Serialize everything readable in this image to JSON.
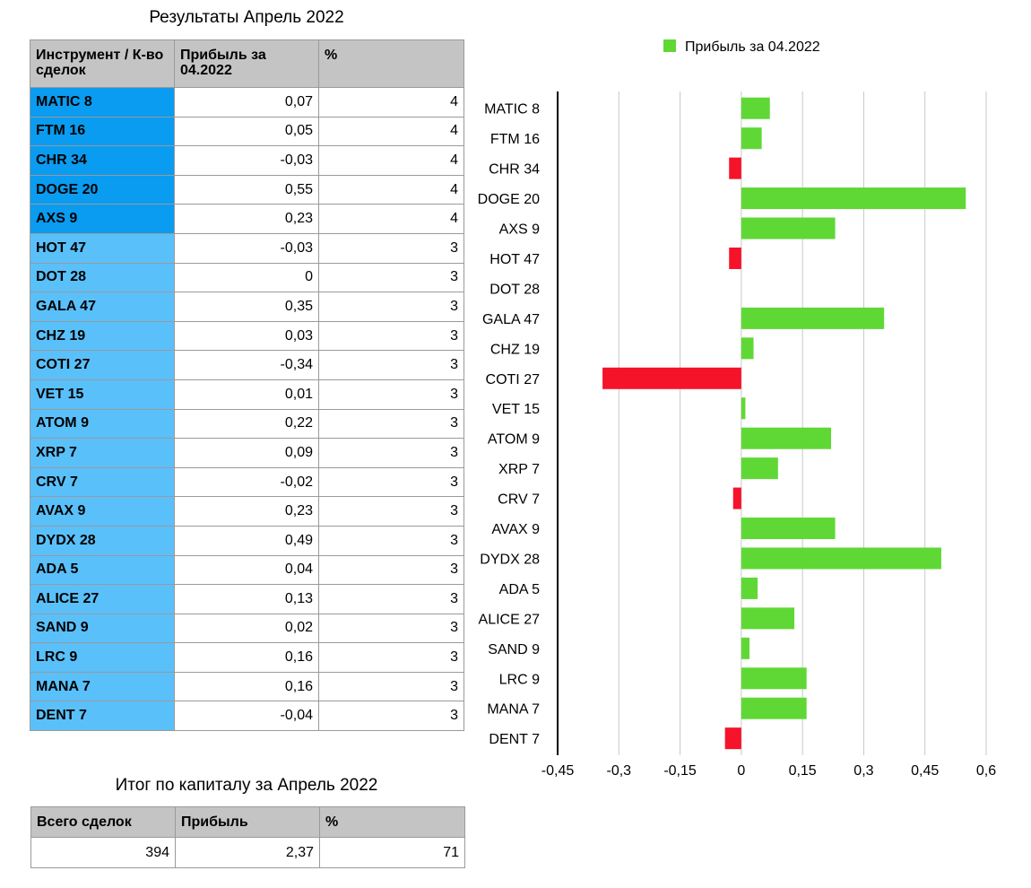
{
  "table_title": "Результаты Апрель 2022",
  "table_headers": [
    "Инструмент / К-во сделок",
    "Прибыль за 04.2022",
    "%"
  ],
  "table_rows": [
    {
      "name": "MATIC 8",
      "profit": "0,07",
      "percent": "4",
      "shade": "dark"
    },
    {
      "name": "FTM 16",
      "profit": "0,05",
      "percent": "4",
      "shade": "dark"
    },
    {
      "name": "CHR 34",
      "profit": "-0,03",
      "percent": "4",
      "shade": "dark"
    },
    {
      "name": "DOGE 20",
      "profit": "0,55",
      "percent": "4",
      "shade": "dark"
    },
    {
      "name": "AXS 9",
      "profit": "0,23",
      "percent": "4",
      "shade": "dark"
    },
    {
      "name": "HOT 47",
      "profit": "-0,03",
      "percent": "3",
      "shade": "light"
    },
    {
      "name": "DOT 28",
      "profit": "0",
      "percent": "3",
      "shade": "light"
    },
    {
      "name": "GALA 47",
      "profit": "0,35",
      "percent": "3",
      "shade": "light"
    },
    {
      "name": "CHZ 19",
      "profit": "0,03",
      "percent": "3",
      "shade": "light"
    },
    {
      "name": "COTI 27",
      "profit": "-0,34",
      "percent": "3",
      "shade": "light"
    },
    {
      "name": "VET 15",
      "profit": "0,01",
      "percent": "3",
      "shade": "light"
    },
    {
      "name": "ATOM 9",
      "profit": "0,22",
      "percent": "3",
      "shade": "light"
    },
    {
      "name": "XRP 7",
      "profit": "0,09",
      "percent": "3",
      "shade": "light"
    },
    {
      "name": "CRV 7",
      "profit": "-0,02",
      "percent": "3",
      "shade": "light"
    },
    {
      "name": "AVAX 9",
      "profit": "0,23",
      "percent": "3",
      "shade": "light"
    },
    {
      "name": "DYDX 28",
      "profit": "0,49",
      "percent": "3",
      "shade": "light"
    },
    {
      "name": "ADA 5",
      "profit": "0,04",
      "percent": "3",
      "shade": "light"
    },
    {
      "name": "ALICE 27",
      "profit": "0,13",
      "percent": "3",
      "shade": "light"
    },
    {
      "name": "SAND 9",
      "profit": "0,02",
      "percent": "3",
      "shade": "light"
    },
    {
      "name": "LRC 9",
      "profit": "0,16",
      "percent": "3",
      "shade": "light"
    },
    {
      "name": "MANA 7",
      "profit": "0,16",
      "percent": "3",
      "shade": "light"
    },
    {
      "name": "DENT 7",
      "profit": "-0,04",
      "percent": "3",
      "shade": "light"
    }
  ],
  "summary_title": "Итог по капиталу за Апрель 2022",
  "summary_headers": [
    "Всего сделок",
    "Прибыль",
    "%"
  ],
  "summary_values": [
    "394",
    "2,37",
    "71"
  ],
  "colors": {
    "positive": "#5fd835",
    "negative": "#f5132a",
    "name_dark": "#0a9cf0",
    "name_light": "#5ac0fa",
    "header": "#c4c4c4"
  },
  "chart_data": {
    "type": "bar",
    "orientation": "horizontal",
    "categories": [
      "MATIC 8",
      "FTM 16",
      "CHR 34",
      "DOGE 20",
      "AXS 9",
      "HOT 47",
      "DOT 28",
      "GALA 47",
      "CHZ 19",
      "COTI 27",
      "VET 15",
      "ATOM 9",
      "XRP 7",
      "CRV 7",
      "AVAX 9",
      "DYDX 28",
      "ADA 5",
      "ALICE 27",
      "SAND 9",
      "LRC 9",
      "MANA 7",
      "DENT 7"
    ],
    "series": [
      {
        "name": "Прибыль за 04.2022",
        "values": [
          0.07,
          0.05,
          -0.03,
          0.55,
          0.23,
          -0.03,
          0,
          0.35,
          0.03,
          -0.34,
          0.01,
          0.22,
          0.09,
          -0.02,
          0.23,
          0.49,
          0.04,
          0.13,
          0.02,
          0.16,
          0.16,
          -0.04
        ]
      }
    ],
    "xlim": [
      -0.45,
      0.6
    ],
    "xticks": [
      -0.45,
      -0.3,
      -0.15,
      0,
      0.15,
      0.3,
      0.45,
      0.6
    ],
    "xtick_labels": [
      "-0,45",
      "-0,3",
      "-0,15",
      "0",
      "0,15",
      "0,3",
      "0,45",
      "0,6"
    ],
    "grid": "vertical",
    "legend": "top"
  }
}
